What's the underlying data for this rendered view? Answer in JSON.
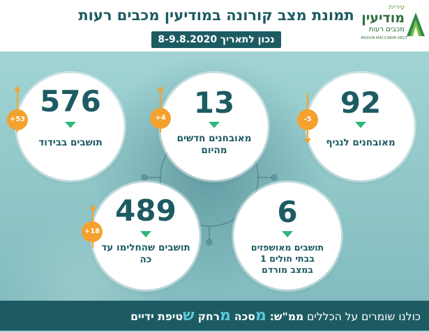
{
  "header": {
    "title": "תמונת מצב קורונה במודיעין מכבים רעות",
    "date_badge": "נכון לתאריך 8-9.8.2020",
    "logo": {
      "top_text": "עיריית",
      "main_text": "מודיעין",
      "sub_text": "מכבים רעות",
      "english_text": "MODIIN MACCABIM REUT"
    }
  },
  "stats": [
    {
      "value": "576",
      "label": "תושבים בבידוד",
      "change": "+53",
      "direction": "up"
    },
    {
      "value": "13",
      "label": "מאובחנים חדשים מהיום",
      "change": "+4",
      "direction": "up"
    },
    {
      "value": "92",
      "label": "מאובחנים לנגיף",
      "change": "-5",
      "direction": "down"
    },
    {
      "value": "489",
      "label": "תושבים שהחלימו עד כה",
      "change": "+18",
      "direction": "up"
    },
    {
      "value": "6",
      "label": "תושבים מאושפזים בבתי חולים 1 במצב מורדם",
      "change": "",
      "direction": ""
    }
  ],
  "footer": {
    "lead": "כולנו שומרים על הכללים",
    "abbr": "ממ\"ש:",
    "rule1_letter": "מ",
    "rule1_rest": "סכה",
    "rule2_letter": "מ",
    "rule2_rest": "רחק",
    "rule3_letter": "ש",
    "rule3_rest": "טיפת ידיים"
  },
  "colors": {
    "primary": "#1d5b63",
    "accent_orange": "#f4a12e",
    "accent_green": "#2fb77a",
    "footer_highlight": "#5cc8d6",
    "background": "#9fd2d3"
  }
}
